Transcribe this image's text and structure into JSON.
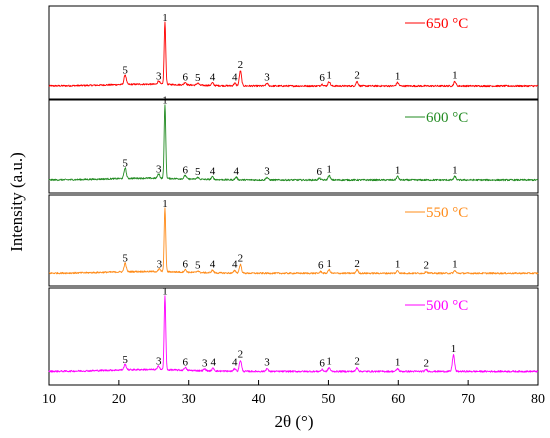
{
  "chart_data": {
    "type": "line",
    "xlabel": "2θ (°)",
    "ylabel": "Intensity (a.u.)",
    "xlim": [
      10,
      80
    ],
    "xticks": [
      "10",
      "20",
      "30",
      "40",
      "50",
      "60",
      "70",
      "80"
    ],
    "grid": false,
    "panels": [
      {
        "name": "650 °C",
        "color": "#ff0000",
        "peaks": [
          {
            "x": 20.9,
            "h": 0.11,
            "label": "5"
          },
          {
            "x": 25.7,
            "h": 0.04,
            "label": "3"
          },
          {
            "x": 26.6,
            "h": 0.7,
            "label": "1"
          },
          {
            "x": 29.5,
            "h": 0.03,
            "label": "6"
          },
          {
            "x": 31.3,
            "h": 0.025,
            "label": "5"
          },
          {
            "x": 33.4,
            "h": 0.03,
            "label": "4"
          },
          {
            "x": 36.6,
            "h": 0.03,
            "label": "4"
          },
          {
            "x": 37.4,
            "h": 0.17,
            "label": "2"
          },
          {
            "x": 41.2,
            "h": 0.03,
            "label": "3"
          },
          {
            "x": 49.1,
            "h": 0.02,
            "label": "6"
          },
          {
            "x": 50.1,
            "h": 0.05,
            "label": "1"
          },
          {
            "x": 54.1,
            "h": 0.05,
            "label": "2"
          },
          {
            "x": 59.9,
            "h": 0.04,
            "label": "1"
          },
          {
            "x": 68.1,
            "h": 0.05,
            "label": "1"
          }
        ]
      },
      {
        "name": "600 °C",
        "color": "#228b22",
        "peaks": [
          {
            "x": 20.9,
            "h": 0.12,
            "label": "5"
          },
          {
            "x": 25.7,
            "h": 0.05,
            "label": "3"
          },
          {
            "x": 26.6,
            "h": 0.83,
            "label": "1"
          },
          {
            "x": 29.5,
            "h": 0.04,
            "label": "6"
          },
          {
            "x": 31.3,
            "h": 0.02,
            "label": "5"
          },
          {
            "x": 33.4,
            "h": 0.03,
            "label": "4"
          },
          {
            "x": 36.8,
            "h": 0.03,
            "label": "4"
          },
          {
            "x": 41.2,
            "h": 0.03,
            "label": "3"
          },
          {
            "x": 48.7,
            "h": 0.02,
            "label": "6"
          },
          {
            "x": 50.1,
            "h": 0.05,
            "label": "1"
          },
          {
            "x": 59.9,
            "h": 0.04,
            "label": "1"
          },
          {
            "x": 68.1,
            "h": 0.04,
            "label": "1"
          }
        ]
      },
      {
        "name": "550 °C",
        "color": "#ff8c1a",
        "peaks": [
          {
            "x": 20.9,
            "h": 0.1,
            "label": "5"
          },
          {
            "x": 25.8,
            "h": 0.03,
            "label": "3"
          },
          {
            "x": 26.6,
            "h": 0.73,
            "label": "1"
          },
          {
            "x": 29.5,
            "h": 0.03,
            "label": "6"
          },
          {
            "x": 31.3,
            "h": 0.02,
            "label": "5"
          },
          {
            "x": 33.4,
            "h": 0.03,
            "label": "4"
          },
          {
            "x": 36.6,
            "h": 0.03,
            "label": "4"
          },
          {
            "x": 37.4,
            "h": 0.1,
            "label": "2"
          },
          {
            "x": 48.9,
            "h": 0.02,
            "label": "6"
          },
          {
            "x": 50.1,
            "h": 0.04,
            "label": "1"
          },
          {
            "x": 54.1,
            "h": 0.04,
            "label": "2"
          },
          {
            "x": 59.9,
            "h": 0.03,
            "label": "1"
          },
          {
            "x": 64.0,
            "h": 0.02,
            "label": "2"
          },
          {
            "x": 68.1,
            "h": 0.03,
            "label": "1"
          }
        ]
      },
      {
        "name": "500 °C",
        "color": "#ff00ff",
        "peaks": [
          {
            "x": 20.9,
            "h": 0.06,
            "label": "5"
          },
          {
            "x": 25.7,
            "h": 0.04,
            "label": "3"
          },
          {
            "x": 26.6,
            "h": 0.8,
            "label": "1"
          },
          {
            "x": 29.5,
            "h": 0.03,
            "label": "6"
          },
          {
            "x": 32.3,
            "h": 0.02,
            "label": "3"
          },
          {
            "x": 33.5,
            "h": 0.03,
            "label": "4"
          },
          {
            "x": 36.6,
            "h": 0.03,
            "label": "4"
          },
          {
            "x": 37.4,
            "h": 0.12,
            "label": "2"
          },
          {
            "x": 41.2,
            "h": 0.03,
            "label": "3"
          },
          {
            "x": 49.1,
            "h": 0.02,
            "label": "6"
          },
          {
            "x": 50.1,
            "h": 0.04,
            "label": "1"
          },
          {
            "x": 54.1,
            "h": 0.04,
            "label": "2"
          },
          {
            "x": 59.9,
            "h": 0.03,
            "label": "1"
          },
          {
            "x": 64.0,
            "h": 0.02,
            "label": "2"
          },
          {
            "x": 67.9,
            "h": 0.18,
            "label": "1"
          }
        ]
      }
    ]
  }
}
